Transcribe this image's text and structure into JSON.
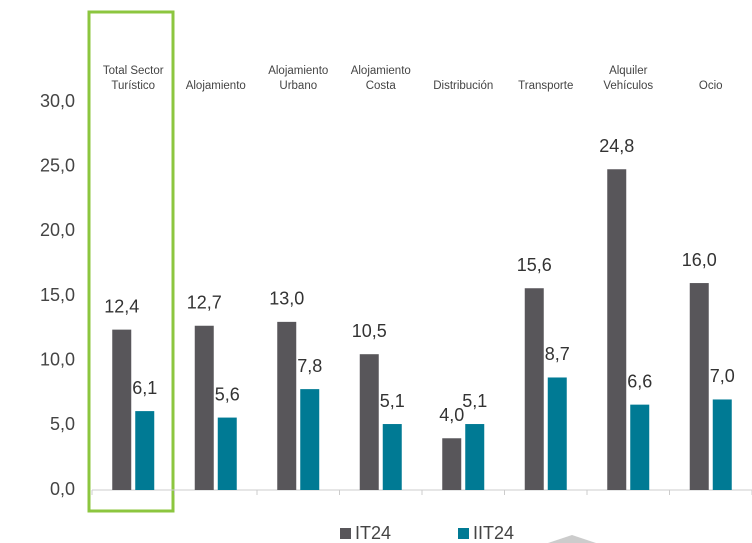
{
  "chart_data": {
    "type": "bar",
    "categories": [
      "Total Sector Turístico",
      "Alojamiento",
      "Alojamiento Urbano",
      "Alojamiento Costa",
      "Distribución",
      "Transporte",
      "Alquiler Vehículos",
      "Ocio"
    ],
    "series": [
      {
        "name": "IT24",
        "color": "#58565a",
        "values": [
          12.4,
          12.7,
          13.0,
          10.5,
          4.0,
          15.6,
          24.8,
          16.0
        ],
        "value_labels": [
          "12,4",
          "12,7",
          "13,0",
          "10,5",
          "4,0",
          "15,6",
          "24,8",
          "16,0"
        ]
      },
      {
        "name": "IIT24",
        "color": "#007a94",
        "values": [
          6.1,
          5.6,
          7.8,
          5.1,
          5.1,
          8.7,
          6.6,
          7.0
        ],
        "value_labels": [
          "6,1",
          "5,6",
          "7,8",
          "5,1",
          "5,1",
          "8,7",
          "6,6",
          "7,0"
        ]
      }
    ],
    "ylim": [
      0,
      30
    ],
    "yticks": [
      {
        "value": 0,
        "label": "0,0"
      },
      {
        "value": 5,
        "label": "5,0"
      },
      {
        "value": 10,
        "label": "10,0"
      },
      {
        "value": 15,
        "label": "15,0"
      },
      {
        "value": 20,
        "label": "20,0"
      },
      {
        "value": 25,
        "label": "25,0"
      },
      {
        "value": 30,
        "label": "30,0"
      }
    ],
    "grid": false
  }
}
